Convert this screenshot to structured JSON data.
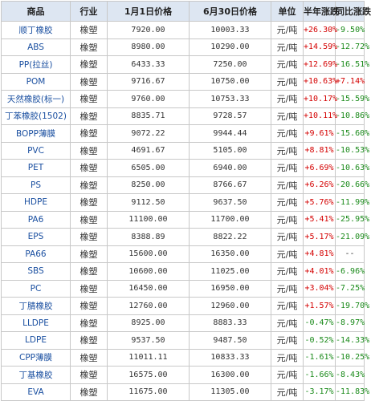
{
  "headers": [
    "商品",
    "行业",
    "1月1日价格",
    "6月30日价格",
    "单位",
    "半年涨跌",
    "同比涨跌"
  ],
  "rows": [
    {
      "name": "顺丁橡胶",
      "industry": "橡塑",
      "jan1": "7920.00",
      "jun30": "10003.33",
      "unit": "元/吨",
      "half": "+26.30%",
      "yoy": "-9.50%"
    },
    {
      "name": "ABS",
      "industry": "橡塑",
      "jan1": "8980.00",
      "jun30": "10290.00",
      "unit": "元/吨",
      "half": "+14.59%",
      "yoy": "-12.72%"
    },
    {
      "name": "PP(拉丝)",
      "industry": "橡塑",
      "jan1": "6433.33",
      "jun30": "7250.00",
      "unit": "元/吨",
      "half": "+12.69%",
      "yoy": "-16.51%"
    },
    {
      "name": "POM",
      "industry": "橡塑",
      "jan1": "9716.67",
      "jun30": "10750.00",
      "unit": "元/吨",
      "half": "+10.63%",
      "yoy": "+7.14%"
    },
    {
      "name": "天然橡胶(标一)",
      "industry": "橡塑",
      "jan1": "9760.00",
      "jun30": "10753.33",
      "unit": "元/吨",
      "half": "+10.17%",
      "yoy": "-15.59%"
    },
    {
      "name": "丁苯橡胶(1502)",
      "industry": "橡塑",
      "jan1": "8835.71",
      "jun30": "9728.57",
      "unit": "元/吨",
      "half": "+10.11%",
      "yoy": "-10.86%"
    },
    {
      "name": "BOPP薄膜",
      "industry": "橡塑",
      "jan1": "9072.22",
      "jun30": "9944.44",
      "unit": "元/吨",
      "half": "+9.61%",
      "yoy": "-15.60%"
    },
    {
      "name": "PVC",
      "industry": "橡塑",
      "jan1": "4691.67",
      "jun30": "5105.00",
      "unit": "元/吨",
      "half": "+8.81%",
      "yoy": "-10.53%"
    },
    {
      "name": "PET",
      "industry": "橡塑",
      "jan1": "6505.00",
      "jun30": "6940.00",
      "unit": "元/吨",
      "half": "+6.69%",
      "yoy": "-10.63%"
    },
    {
      "name": "PS",
      "industry": "橡塑",
      "jan1": "8250.00",
      "jun30": "8766.67",
      "unit": "元/吨",
      "half": "+6.26%",
      "yoy": "-20.66%"
    },
    {
      "name": "HDPE",
      "industry": "橡塑",
      "jan1": "9112.50",
      "jun30": "9637.50",
      "unit": "元/吨",
      "half": "+5.76%",
      "yoy": "-11.99%"
    },
    {
      "name": "PA6",
      "industry": "橡塑",
      "jan1": "11100.00",
      "jun30": "11700.00",
      "unit": "元/吨",
      "half": "+5.41%",
      "yoy": "-25.95%"
    },
    {
      "name": "EPS",
      "industry": "橡塑",
      "jan1": "8388.89",
      "jun30": "8822.22",
      "unit": "元/吨",
      "half": "+5.17%",
      "yoy": "-21.09%"
    },
    {
      "name": "PA66",
      "industry": "橡塑",
      "jan1": "15600.00",
      "jun30": "16350.00",
      "unit": "元/吨",
      "half": "+4.81%",
      "yoy": "--"
    },
    {
      "name": "SBS",
      "industry": "橡塑",
      "jan1": "10600.00",
      "jun30": "11025.00",
      "unit": "元/吨",
      "half": "+4.01%",
      "yoy": "-6.96%"
    },
    {
      "name": "PC",
      "industry": "橡塑",
      "jan1": "16450.00",
      "jun30": "16950.00",
      "unit": "元/吨",
      "half": "+3.04%",
      "yoy": "-7.25%"
    },
    {
      "name": "丁腈橡胶",
      "industry": "橡塑",
      "jan1": "12760.00",
      "jun30": "12960.00",
      "unit": "元/吨",
      "half": "+1.57%",
      "yoy": "-19.70%"
    },
    {
      "name": "LLDPE",
      "industry": "橡塑",
      "jan1": "8925.00",
      "jun30": "8883.33",
      "unit": "元/吨",
      "half": "-0.47%",
      "yoy": "-8.97%"
    },
    {
      "name": "LDPE",
      "industry": "橡塑",
      "jan1": "9537.50",
      "jun30": "9487.50",
      "unit": "元/吨",
      "half": "-0.52%",
      "yoy": "-14.33%"
    },
    {
      "name": "CPP薄膜",
      "industry": "橡塑",
      "jan1": "11011.11",
      "jun30": "10833.33",
      "unit": "元/吨",
      "half": "-1.61%",
      "yoy": "-10.25%"
    },
    {
      "name": "丁基橡胶",
      "industry": "橡塑",
      "jan1": "16575.00",
      "jun30": "16300.00",
      "unit": "元/吨",
      "half": "-1.66%",
      "yoy": "-8.43%"
    },
    {
      "name": "EVA",
      "industry": "橡塑",
      "jan1": "11675.00",
      "jun30": "11305.00",
      "unit": "元/吨",
      "half": "-3.17%",
      "yoy": "-11.83%"
    }
  ],
  "colors": {
    "header_bg": "#dde6f2",
    "border": "#c8c8c8",
    "name_link": "#1a4fa0",
    "up": "#d40000",
    "down": "#1a8a1a"
  }
}
